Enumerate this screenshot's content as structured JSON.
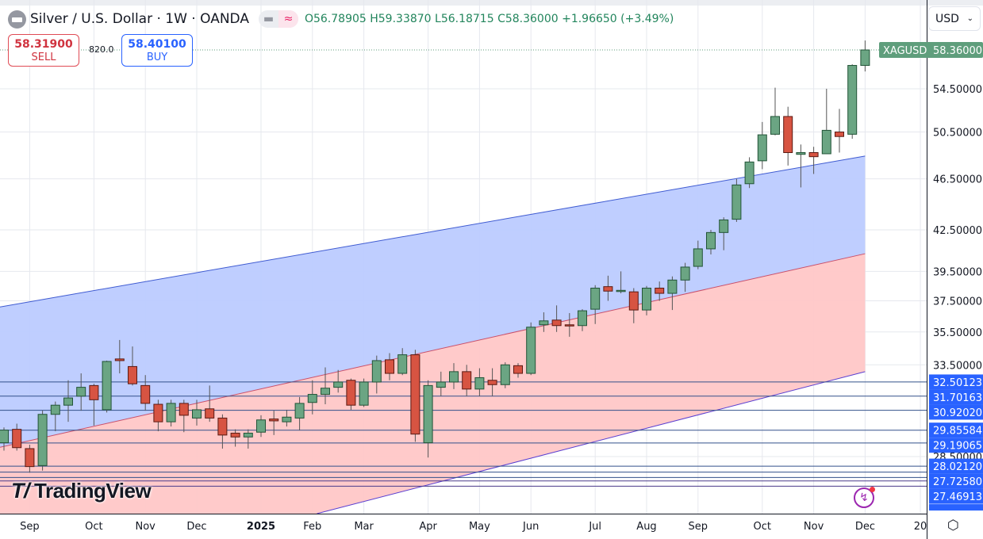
{
  "header": {
    "title": "Silver / U.S. Dollar · 1W · OANDA",
    "symbol_icon": "silver-bars-icon",
    "indicator_pill": {
      "left": "minus",
      "right": "≈"
    },
    "ohlc": "O56.78905 H59.33870 L56.18715 C58.36000 +1.96650 (+3.49%)"
  },
  "trade": {
    "sell_price": "58.31900",
    "sell_label": "SELL",
    "spread": "820.0",
    "buy_price": "58.40100",
    "buy_label": "BUY"
  },
  "currency_select": {
    "value": "USD",
    "icon": "chevron-down-icon"
  },
  "current_price": {
    "symbol": "XAGUSD",
    "value": "58.36000",
    "color": "#5f9e7c"
  },
  "logo": "TradingView",
  "settings_icon": "gear-icon",
  "colors": {
    "up": "#6ba583",
    "down": "#d75442",
    "up_border": "#225437",
    "down_border": "#5b1a13",
    "upper_channel": "#bccbff",
    "lower_channel": "#ffc7c7",
    "level_label": "#2962ff"
  },
  "chart_data": {
    "type": "candlestick",
    "scale": "log",
    "ylim": [
      25.5,
      62
    ],
    "grid": true,
    "y_ticks": [
      "54.50000",
      "50.50000",
      "46.50000",
      "42.50000",
      "39.50000",
      "37.50000",
      "35.50000",
      "33.50000",
      "28.50000"
    ],
    "x_ticks": [
      {
        "label": "Sep",
        "bar": 3
      },
      {
        "label": "Oct",
        "bar": 8
      },
      {
        "label": "Nov",
        "bar": 12
      },
      {
        "label": "Dec",
        "bar": 16
      },
      {
        "label": "2025",
        "bar": 21,
        "bold": true
      },
      {
        "label": "Feb",
        "bar": 25
      },
      {
        "label": "Mar",
        "bar": 29
      },
      {
        "label": "Apr",
        "bar": 34
      },
      {
        "label": "May",
        "bar": 38
      },
      {
        "label": "Jun",
        "bar": 42
      },
      {
        "label": "Jul",
        "bar": 47
      },
      {
        "label": "Aug",
        "bar": 51
      },
      {
        "label": "Sep",
        "bar": 55
      },
      {
        "label": "Oct",
        "bar": 60
      },
      {
        "label": "Nov",
        "bar": 64
      },
      {
        "label": "Dec",
        "bar": 68
      },
      {
        "label": "20",
        "bar": 72.3
      }
    ],
    "candles_ohlc": [
      [
        29.2,
        30.0,
        28.8,
        29.86
      ],
      [
        29.9,
        30.2,
        28.8,
        28.95
      ],
      [
        28.9,
        29.1,
        27.7,
        28.0
      ],
      [
        28.05,
        30.9,
        27.8,
        30.7
      ],
      [
        30.7,
        31.4,
        29.8,
        31.2
      ],
      [
        31.2,
        32.6,
        30.3,
        31.6
      ],
      [
        31.7,
        33.0,
        30.9,
        32.2
      ],
      [
        32.3,
        32.4,
        30.1,
        31.5
      ],
      [
        30.95,
        33.75,
        30.8,
        33.7
      ],
      [
        33.85,
        35.0,
        33.0,
        33.75
      ],
      [
        33.4,
        34.6,
        32.3,
        32.4
      ],
      [
        32.3,
        32.9,
        30.9,
        31.3
      ],
      [
        31.25,
        31.5,
        29.8,
        30.3
      ],
      [
        30.3,
        31.5,
        30.05,
        31.3
      ],
      [
        31.3,
        31.5,
        29.75,
        30.65
      ],
      [
        30.5,
        31.5,
        30.1,
        30.95
      ],
      [
        31.0,
        32.3,
        30.3,
        30.5
      ],
      [
        30.5,
        30.7,
        28.9,
        29.6
      ],
      [
        29.7,
        29.9,
        29.0,
        29.5
      ],
      [
        29.5,
        29.9,
        28.9,
        29.7
      ],
      [
        29.75,
        30.65,
        29.5,
        30.4
      ],
      [
        30.45,
        30.9,
        29.6,
        30.35
      ],
      [
        30.3,
        30.95,
        30.05,
        30.55
      ],
      [
        30.5,
        31.65,
        29.85,
        31.3
      ],
      [
        31.35,
        32.6,
        30.7,
        31.8
      ],
      [
        31.8,
        33.35,
        31.25,
        32.15
      ],
      [
        32.2,
        33.2,
        31.9,
        32.5
      ],
      [
        32.6,
        32.7,
        30.95,
        31.2
      ],
      [
        31.2,
        32.7,
        31.1,
        32.5
      ],
      [
        32.5,
        34.05,
        31.85,
        33.75
      ],
      [
        33.8,
        34.2,
        32.6,
        33.0
      ],
      [
        33.0,
        34.5,
        32.9,
        34.1
      ],
      [
        34.1,
        34.4,
        29.25,
        29.65
      ],
      [
        29.2,
        32.6,
        28.45,
        32.3
      ],
      [
        32.2,
        33.1,
        31.7,
        32.5
      ],
      [
        32.5,
        33.6,
        32.1,
        33.1
      ],
      [
        33.1,
        33.5,
        31.7,
        32.1
      ],
      [
        32.1,
        33.3,
        31.7,
        32.75
      ],
      [
        32.6,
        33.3,
        31.7,
        32.35
      ],
      [
        32.35,
        33.65,
        32.15,
        33.5
      ],
      [
        33.45,
        33.6,
        32.75,
        33.0
      ],
      [
        33.0,
        36.1,
        32.9,
        35.8
      ],
      [
        35.95,
        36.75,
        35.5,
        36.2
      ],
      [
        36.25,
        37.2,
        35.5,
        35.9
      ],
      [
        35.95,
        36.7,
        35.2,
        35.9
      ],
      [
        35.9,
        36.95,
        35.55,
        36.85
      ],
      [
        36.95,
        38.55,
        36.0,
        38.35
      ],
      [
        38.45,
        39.2,
        37.5,
        38.15
      ],
      [
        38.15,
        39.5,
        38.0,
        38.2
      ],
      [
        38.1,
        38.35,
        36.05,
        36.9
      ],
      [
        36.9,
        38.5,
        36.55,
        38.35
      ],
      [
        38.35,
        38.8,
        37.5,
        38.0
      ],
      [
        38.0,
        39.15,
        36.9,
        38.9
      ],
      [
        38.9,
        40.1,
        38.1,
        39.8
      ],
      [
        39.85,
        41.7,
        39.65,
        41.1
      ],
      [
        41.1,
        42.5,
        40.7,
        42.3
      ],
      [
        42.3,
        43.45,
        41.0,
        43.25
      ],
      [
        43.3,
        46.5,
        43.1,
        46.0
      ],
      [
        46.1,
        48.3,
        45.75,
        47.9
      ],
      [
        48.0,
        51.4,
        47.3,
        50.25
      ],
      [
        50.3,
        54.6,
        50.2,
        51.9
      ],
      [
        51.9,
        52.8,
        47.6,
        48.7
      ],
      [
        48.55,
        49.4,
        45.8,
        48.7
      ],
      [
        48.7,
        49.2,
        46.9,
        48.35
      ],
      [
        48.6,
        54.5,
        48.6,
        50.65
      ],
      [
        50.5,
        52.6,
        48.7,
        50.1
      ],
      [
        50.3,
        56.9,
        49.9,
        56.78905
      ],
      [
        56.78905,
        59.3387,
        56.18715,
        58.36
      ]
    ],
    "channel": {
      "upper": {
        "bar_start": 0.7,
        "price_start": 37.1,
        "bar_end": 68,
        "price_end": 48.4
      },
      "middle": {
        "bar_start": 0.7,
        "price_start": 28.97,
        "bar_end": 68,
        "price_end": 40.75
      },
      "lower": {
        "bar_start": 0.7,
        "price_start": 22.3,
        "bar_end": 68,
        "price_end": 33.1
      }
    },
    "levels": [
      "32.50123",
      "31.70163",
      "30.92020",
      "29.85584",
      "29.19065",
      "28.02120",
      "27.72580",
      "27.46913"
    ],
    "extra_level_lines": [
      27.3,
      27.05
    ]
  }
}
